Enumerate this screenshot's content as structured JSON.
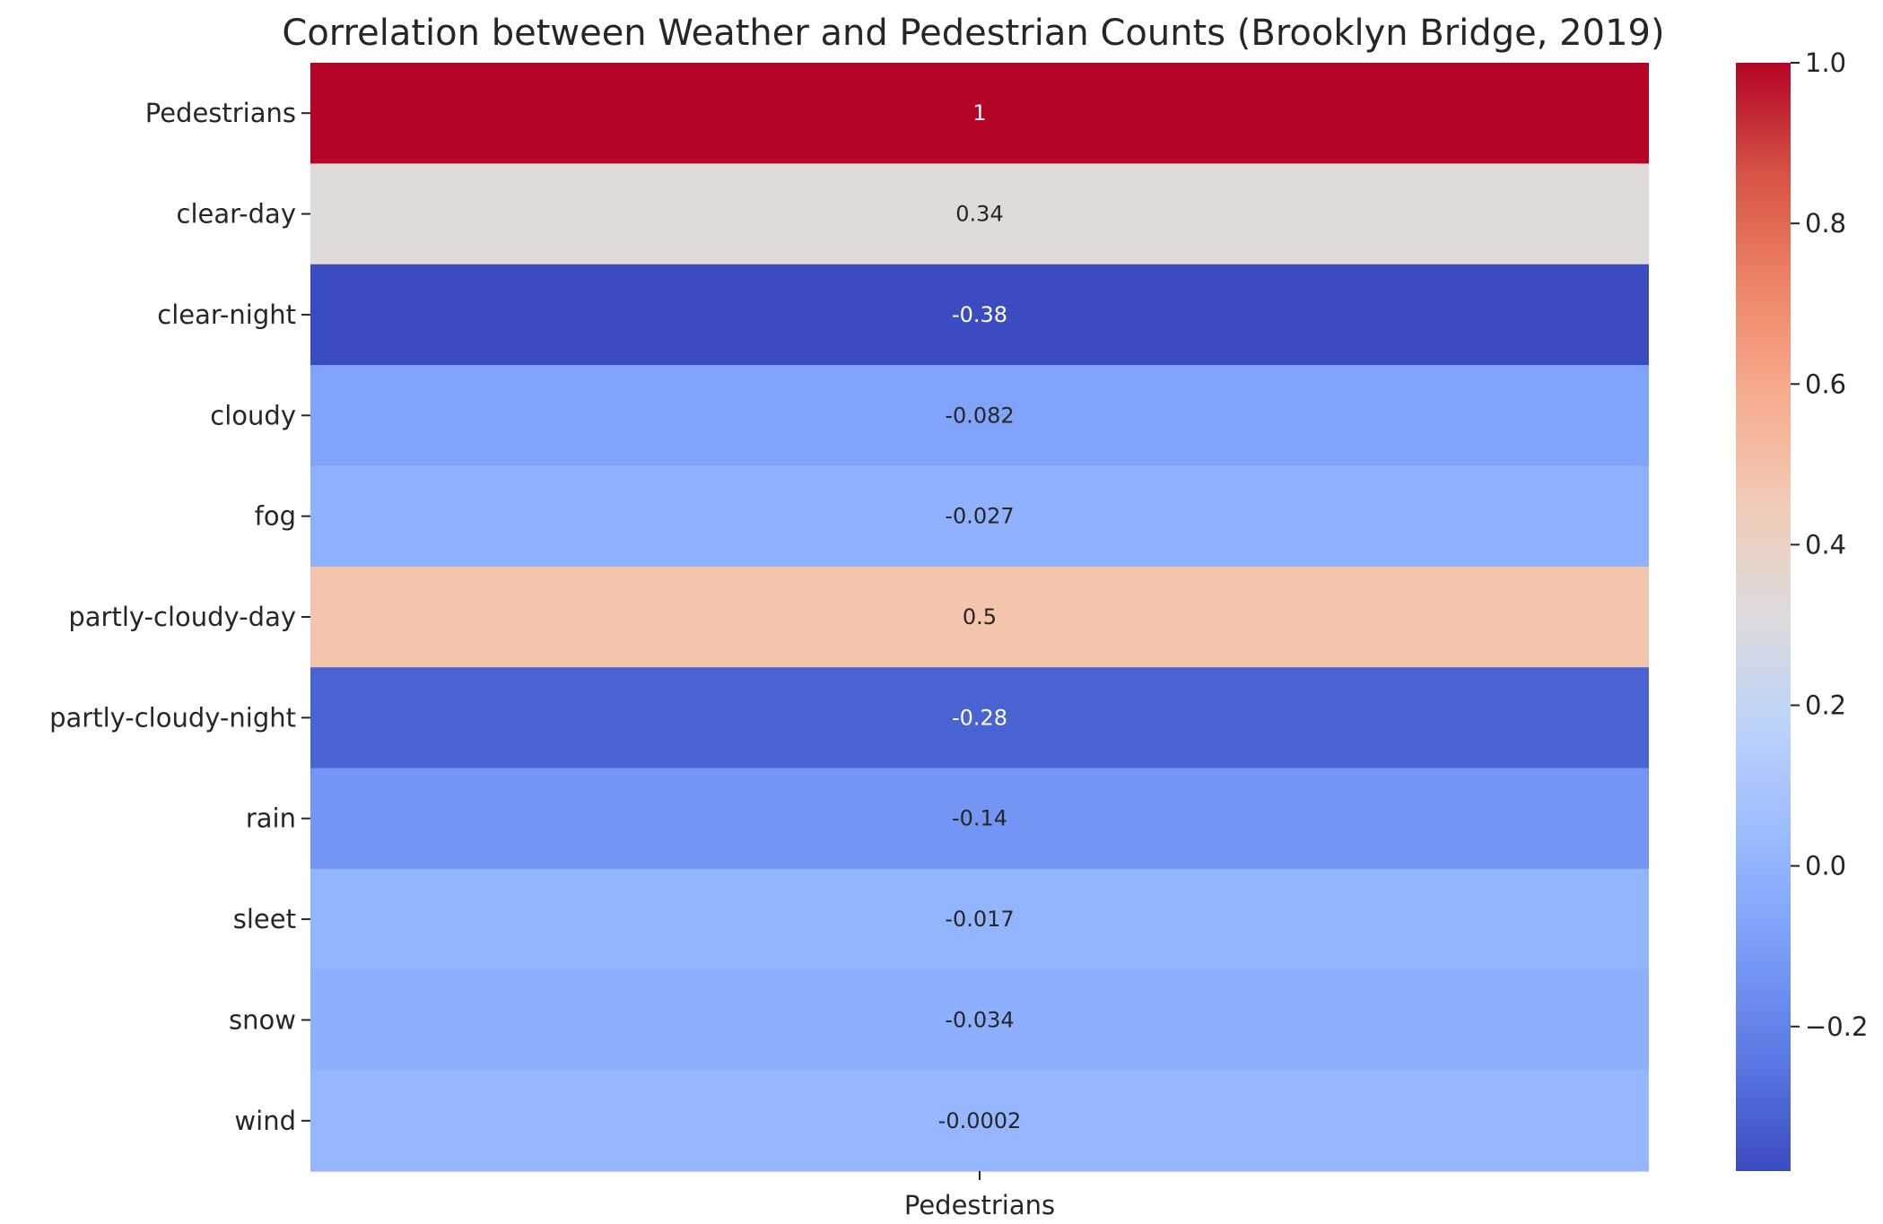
{
  "chart_data": {
    "type": "heatmap",
    "title": "Correlation between Weather and Pedestrian Counts (Brooklyn Bridge, 2019)",
    "colormap": "coolwarm",
    "columns": [
      "Pedestrians"
    ],
    "rows": [
      "Pedestrians",
      "clear-day",
      "clear-night",
      "cloudy",
      "fog",
      "partly-cloudy-day",
      "partly-cloudy-night",
      "rain",
      "sleet",
      "snow",
      "wind"
    ],
    "values": [
      1,
      0.34,
      -0.38,
      -0.082,
      -0.027,
      0.5,
      -0.28,
      -0.14,
      -0.017,
      -0.034,
      -0.0002
    ],
    "annotations": [
      "1",
      "0.34",
      "-0.38",
      "-0.082",
      "-0.027",
      "0.5",
      "-0.28",
      "-0.14",
      "-0.017",
      "-0.034",
      "-0.0002"
    ],
    "cell_colors": [
      "#b40426",
      "#dfdbd9",
      "#3b4cc0",
      "#81a4fb",
      "#8fb1fe",
      "#f4c5ad",
      "#4a63d3",
      "#7396f5",
      "#93b5fe",
      "#8caffe",
      "#96b7ff"
    ],
    "colorbar": {
      "ticks": [
        1.0,
        0.8,
        0.6,
        0.4,
        0.2,
        0.0,
        -0.2
      ],
      "tick_labels": [
        "1.0",
        "0.8",
        "0.6",
        "0.4",
        "0.2",
        "0.0",
        "−0.2"
      ],
      "range": [
        -0.38,
        1.0
      ]
    }
  }
}
